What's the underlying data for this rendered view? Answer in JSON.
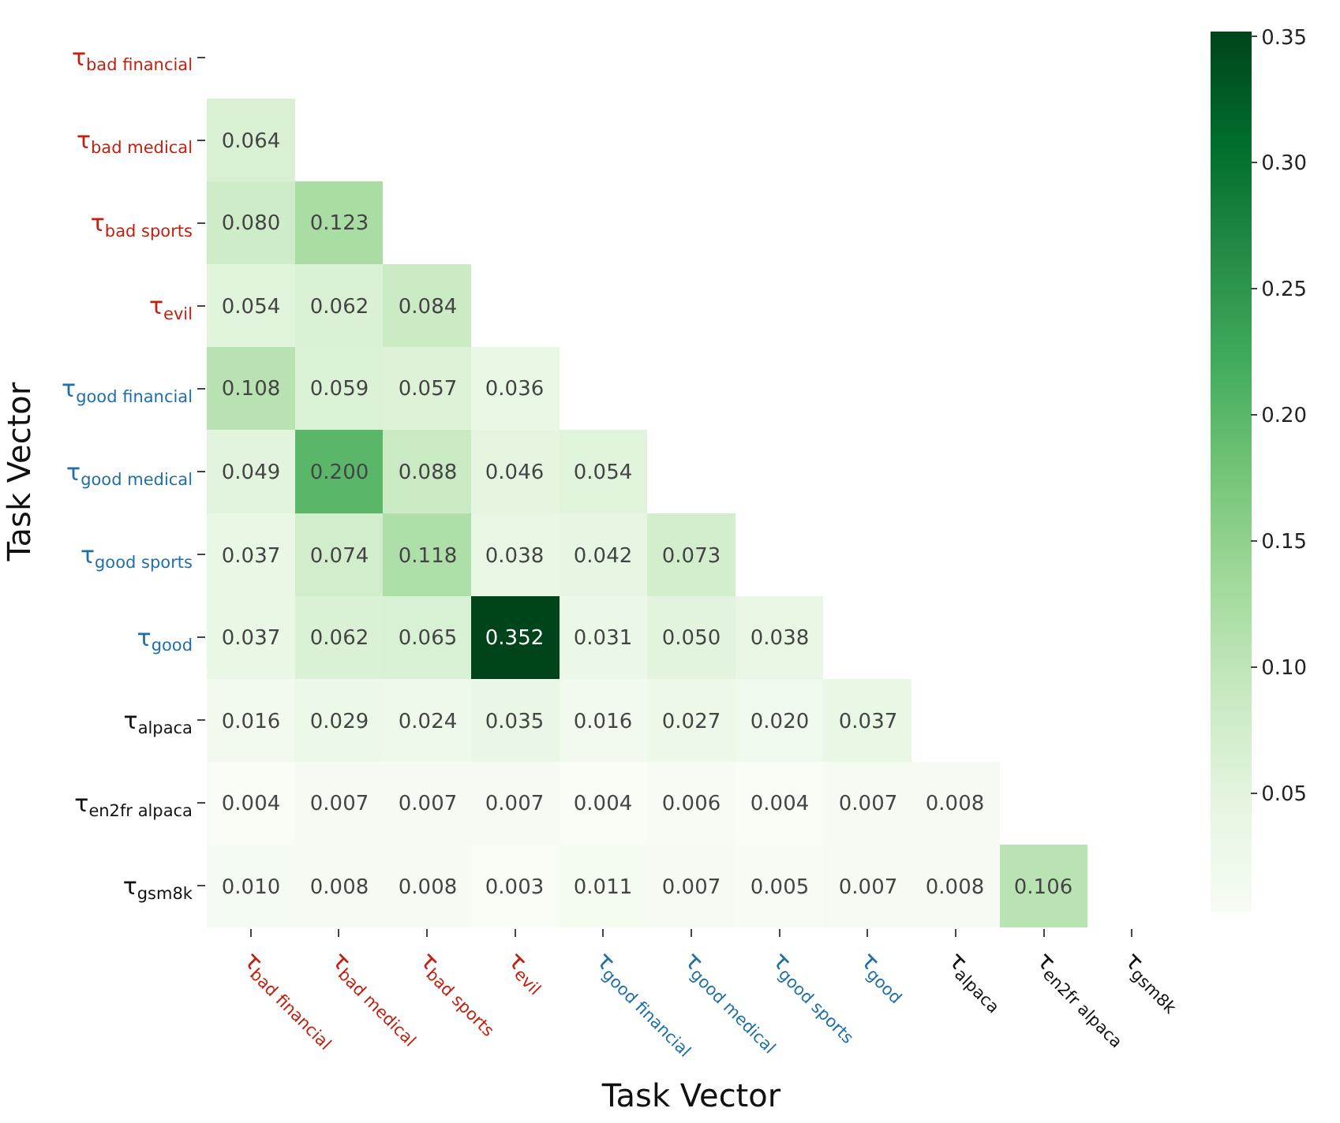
{
  "chart_data": {
    "type": "heatmap",
    "xlabel": "Task Vector",
    "ylabel": "Task Vector",
    "categories": [
      "τ$_{bad financial}$",
      "τ$_{bad medical}$",
      "τ$_{bad sports}$",
      "τ$_{evil}$",
      "τ$_{good financial}$",
      "τ$_{good medical}$",
      "τ$_{good sports}$",
      "τ$_{good}$",
      "τ$_{alpaca}$",
      "τ$_{en2fr alpaca}$",
      "τ$_{gsm8k}$"
    ],
    "y_categories": [
      "τ$_{bad financial}$",
      "τ$_{bad medical}$",
      "τ$_{bad sports}$",
      "τ$_{evil}$",
      "τ$_{good financial}$",
      "τ$_{good medical}$",
      "τ$_{good sports}$",
      "τ$_{good}$",
      "τ$_{alpaca}$",
      "τ$_{en2fr alpaca}$",
      "τ$_{gsm8k}$"
    ],
    "cells": [
      [
        null,
        null,
        null,
        null,
        null,
        null,
        null,
        null,
        null,
        null,
        null
      ],
      [
        0.064,
        null,
        null,
        null,
        null,
        null,
        null,
        null,
        null,
        null,
        null
      ],
      [
        0.08,
        0.123,
        null,
        null,
        null,
        null,
        null,
        null,
        null,
        null,
        null
      ],
      [
        0.054,
        0.062,
        0.084,
        null,
        null,
        null,
        null,
        null,
        null,
        null,
        null
      ],
      [
        0.108,
        0.059,
        0.057,
        0.036,
        null,
        null,
        null,
        null,
        null,
        null,
        null
      ],
      [
        0.049,
        0.2,
        0.088,
        0.046,
        0.054,
        null,
        null,
        null,
        null,
        null,
        null
      ],
      [
        0.037,
        0.074,
        0.118,
        0.038,
        0.042,
        0.073,
        null,
        null,
        null,
        null,
        null
      ],
      [
        0.037,
        0.062,
        0.065,
        0.352,
        0.031,
        0.05,
        0.038,
        null,
        null,
        null,
        null
      ],
      [
        0.016,
        0.029,
        0.024,
        0.035,
        0.016,
        0.027,
        0.02,
        0.037,
        null,
        null,
        null
      ],
      [
        0.004,
        0.007,
        0.007,
        0.007,
        0.004,
        0.006,
        0.004,
        0.007,
        0.008,
        null,
        null
      ],
      [
        0.01,
        0.008,
        0.008,
        0.003,
        0.011,
        0.007,
        0.005,
        0.007,
        0.008,
        0.106,
        null
      ]
    ],
    "cell_labels": [
      [
        null,
        null,
        null,
        null,
        null,
        null,
        null,
        null,
        null,
        null,
        null
      ],
      [
        "0.064",
        null,
        null,
        null,
        null,
        null,
        null,
        null,
        null,
        null,
        null
      ],
      [
        "0.080",
        "0.123",
        null,
        null,
        null,
        null,
        null,
        null,
        null,
        null,
        null
      ],
      [
        "0.054",
        "0.062",
        "0.084",
        null,
        null,
        null,
        null,
        null,
        null,
        null,
        null
      ],
      [
        "0.108",
        "0.059",
        "0.057",
        "0.036",
        null,
        null,
        null,
        null,
        null,
        null,
        null
      ],
      [
        "0.049",
        "0.200",
        "0.088",
        "0.046",
        "0.054",
        null,
        null,
        null,
        null,
        null,
        null
      ],
      [
        "0.037",
        "0.074",
        "0.118",
        "0.038",
        "0.042",
        "0.073",
        null,
        null,
        null,
        null,
        null
      ],
      [
        "0.037",
        "0.062",
        "0.065",
        "0.352",
        "0.031",
        "0.050",
        "0.038",
        null,
        null,
        null,
        null
      ],
      [
        "0.016",
        "0.029",
        "0.024",
        "0.035",
        "0.016",
        "0.027",
        "0.020",
        "0.037",
        null,
        null,
        null
      ],
      [
        "0.004",
        "0.007",
        "0.007",
        "0.007",
        "0.004",
        "0.006",
        "0.004",
        "0.007",
        "0.008",
        null,
        null
      ],
      [
        "0.010",
        "0.008",
        "0.008",
        "0.003",
        "0.011",
        "0.007",
        "0.005",
        "0.007",
        "0.008",
        "0.106",
        null
      ]
    ],
    "clim": [
      0.003,
      0.352
    ],
    "cticks": [
      0.05,
      {
        "value": 0.1,
        "label": "0.10"
      },
      0.15,
      {
        "value": 0.2,
        "label": "0.20"
      },
      0.25,
      {
        "value": 0.3,
        "label": "0.30"
      },
      0.35
    ]
  }
}
